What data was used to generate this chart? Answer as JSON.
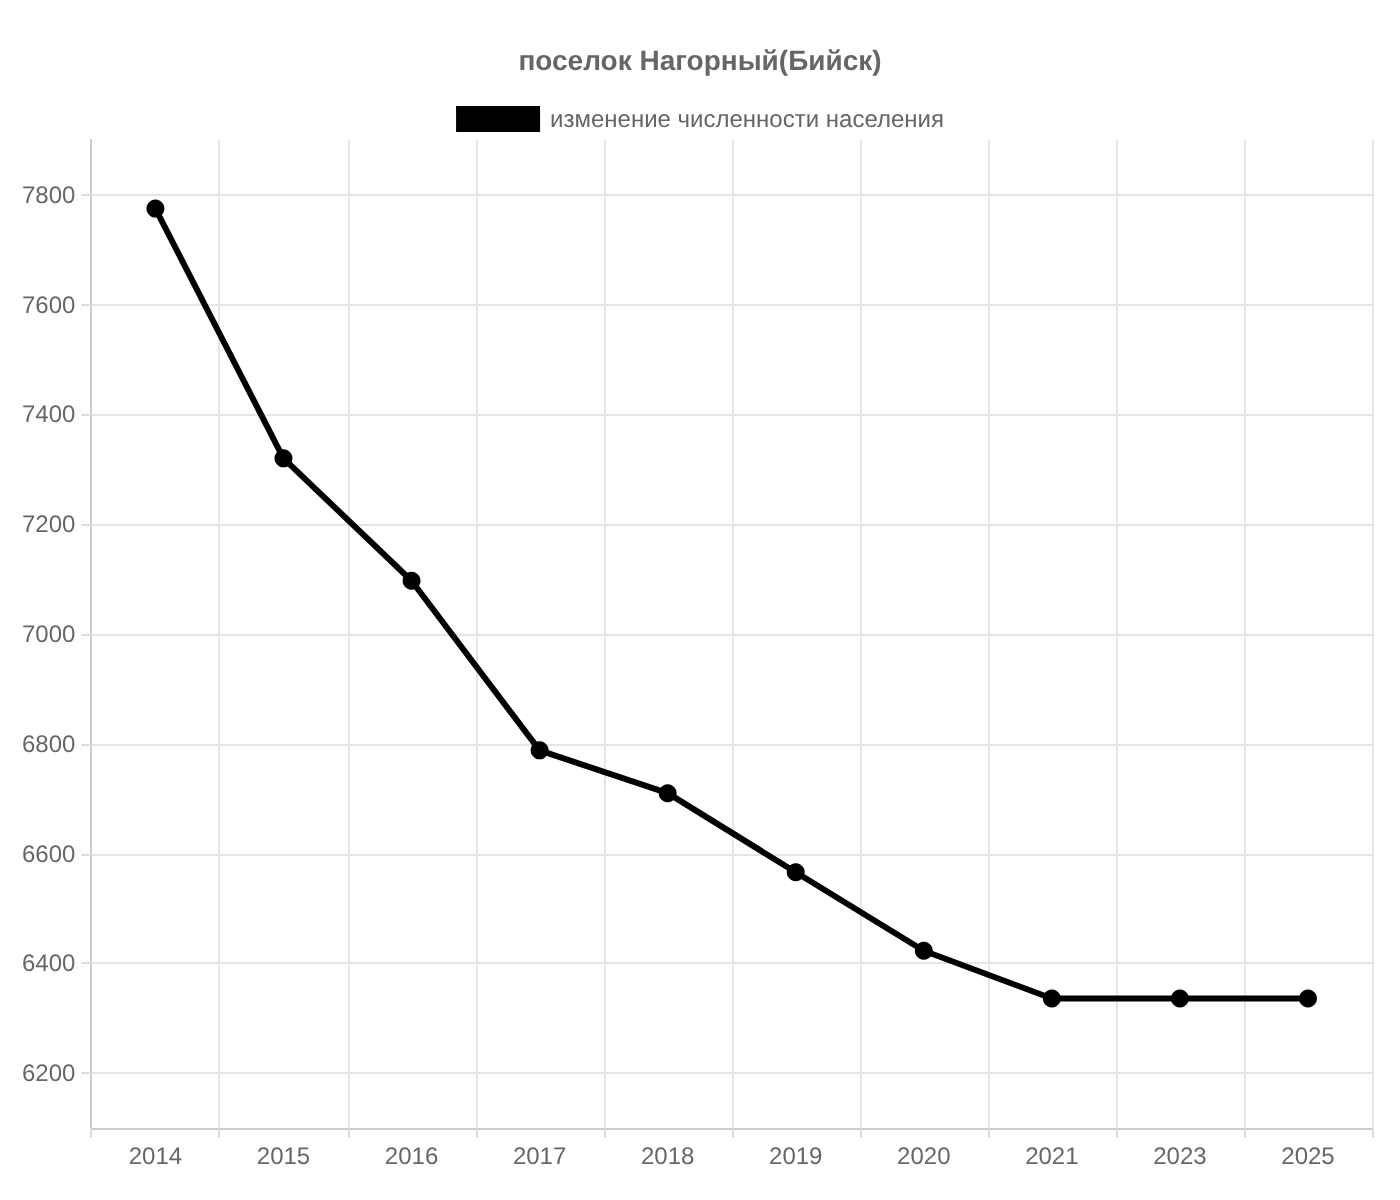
{
  "chart_data": {
    "type": "line",
    "title": "поселок Нагорный(Бийск)",
    "categories": [
      "2014",
      "2015",
      "2016",
      "2017",
      "2018",
      "2019",
      "2020",
      "2021",
      "2023",
      "2025"
    ],
    "series": [
      {
        "name": "изменение численности населения",
        "color": "#000000",
        "values": [
          7775,
          7320,
          7097,
          6788,
          6710,
          6566,
          6423,
          6336,
          6336,
          6336
        ]
      }
    ],
    "ylim": [
      6100,
      7900
    ],
    "yticks": [
      6200,
      6400,
      6600,
      6800,
      7000,
      7200,
      7400,
      7600,
      7800
    ],
    "grid": true,
    "legend": "top",
    "marker": "circle",
    "line_style": "solid"
  }
}
